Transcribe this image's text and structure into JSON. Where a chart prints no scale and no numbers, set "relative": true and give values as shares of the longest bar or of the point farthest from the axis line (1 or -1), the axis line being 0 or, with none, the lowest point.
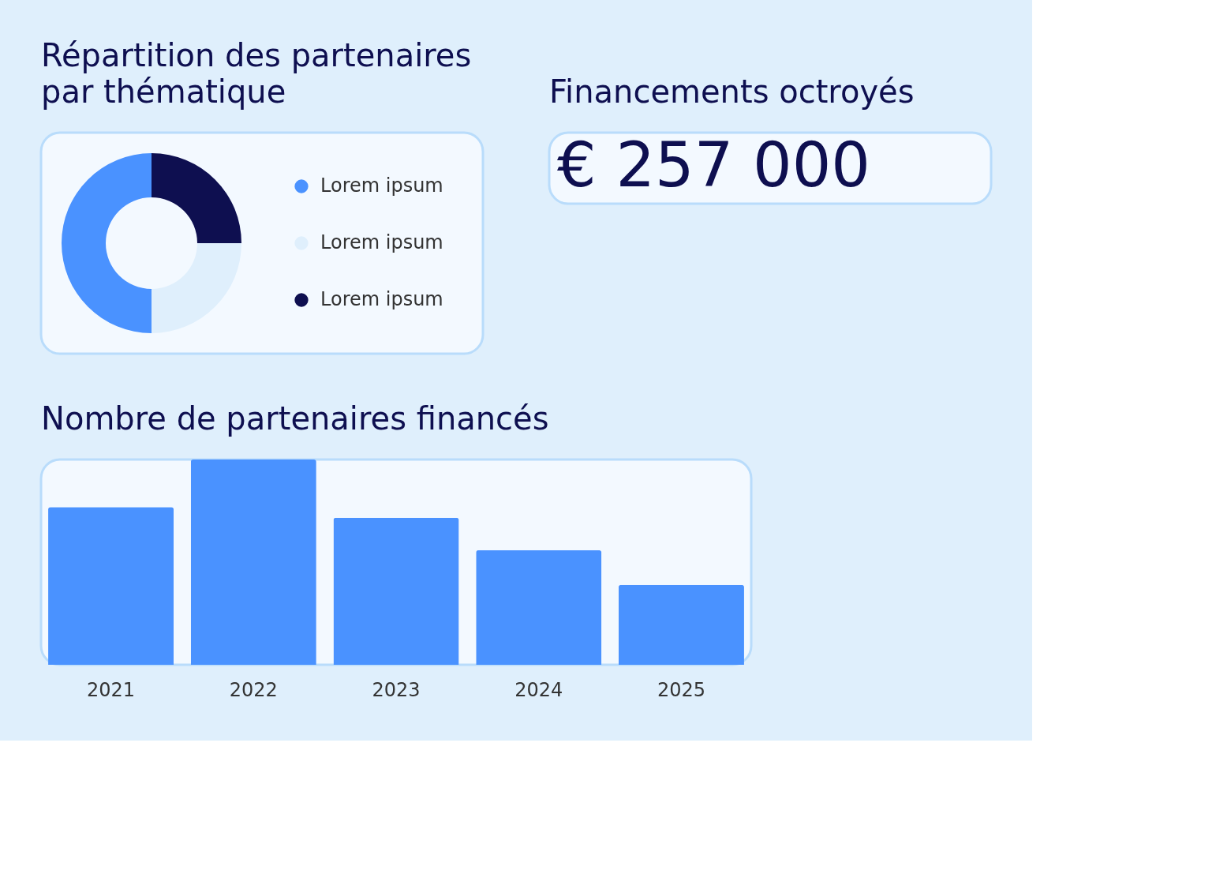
{
  "chart_data": [
    {
      "type": "donut",
      "title": "Répartition des partenaires par thématique",
      "categories": [
        "Lorem ipsum",
        "Lorem ipsum",
        "Lorem ipsum"
      ],
      "values": [
        50,
        25,
        25
      ],
      "colors": [
        "#4a92ff",
        "#dfeffc",
        "#0e0f50"
      ],
      "legend": "right"
    },
    {
      "type": "other",
      "title": "Financements octroyés",
      "annotations": [
        "€ 257 000"
      ]
    },
    {
      "type": "bar",
      "title": "Nombre de partenaires financés",
      "categories": [
        "2021",
        "2022",
        "2023",
        "2024",
        "2025"
      ],
      "values": [
        0.768,
        1,
        0.716,
        0.558,
        0.389
      ],
      "color": "#4a92ff",
      "relative": true,
      "grid": false
    }
  ]
}
